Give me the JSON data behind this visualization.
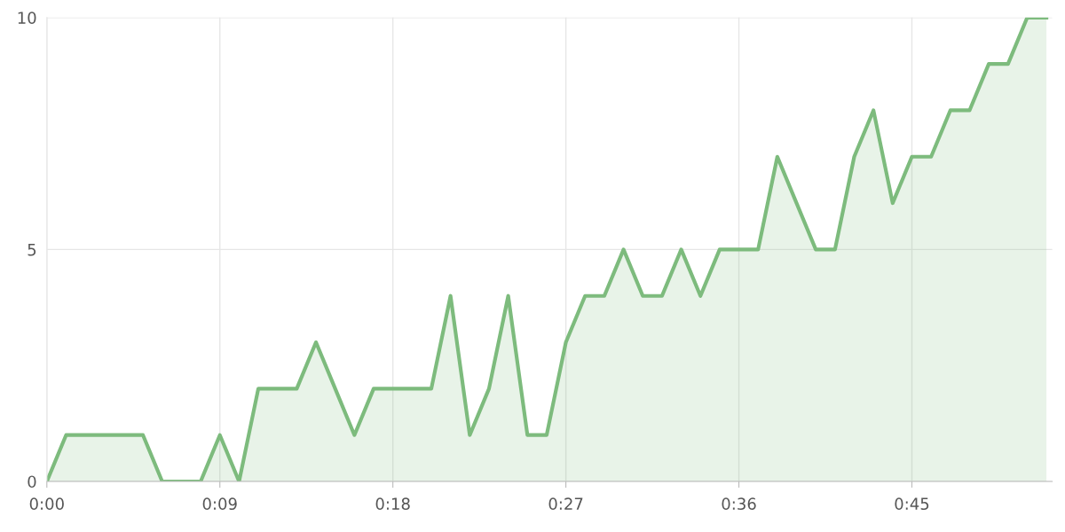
{
  "chart_data": {
    "type": "area",
    "x": [
      0,
      1,
      2,
      3,
      4,
      5,
      6,
      7,
      8,
      9,
      10,
      11,
      12,
      13,
      14,
      15,
      16,
      17,
      18,
      19,
      20,
      21,
      22,
      23,
      24,
      25,
      26,
      27,
      28,
      29,
      30,
      31,
      32,
      33,
      34,
      35,
      36,
      37,
      38,
      39,
      40,
      41,
      42,
      43,
      44,
      45,
      46,
      47,
      48,
      49,
      50,
      51,
      52
    ],
    "series": [
      {
        "color": "#7dbb7d",
        "values": [
          0,
          1,
          1,
          1,
          1,
          1,
          0,
          0,
          0,
          1,
          0,
          2,
          2,
          2,
          3,
          2,
          1,
          2,
          2,
          2,
          2,
          4,
          1,
          2,
          4,
          1,
          1,
          3,
          4,
          4,
          5,
          4,
          4,
          5,
          4,
          5,
          5,
          5,
          7,
          6,
          5,
          5,
          7,
          8,
          6,
          7,
          7,
          8,
          8,
          9,
          9,
          10,
          10
        ]
      }
    ],
    "xlim": [
      0,
      52.3
    ],
    "xticks": [
      {
        "value": 0,
        "label": "0:00"
      },
      {
        "value": 9,
        "label": "0:09"
      },
      {
        "value": 18,
        "label": "0:18"
      },
      {
        "value": 27,
        "label": "0:27"
      },
      {
        "value": 36,
        "label": "0:36"
      },
      {
        "value": 45,
        "label": "0:45"
      }
    ],
    "ylim": [
      0,
      10
    ],
    "yticks": [
      0,
      5,
      10
    ],
    "grid": true,
    "marker": "none",
    "line_style": "solid"
  }
}
